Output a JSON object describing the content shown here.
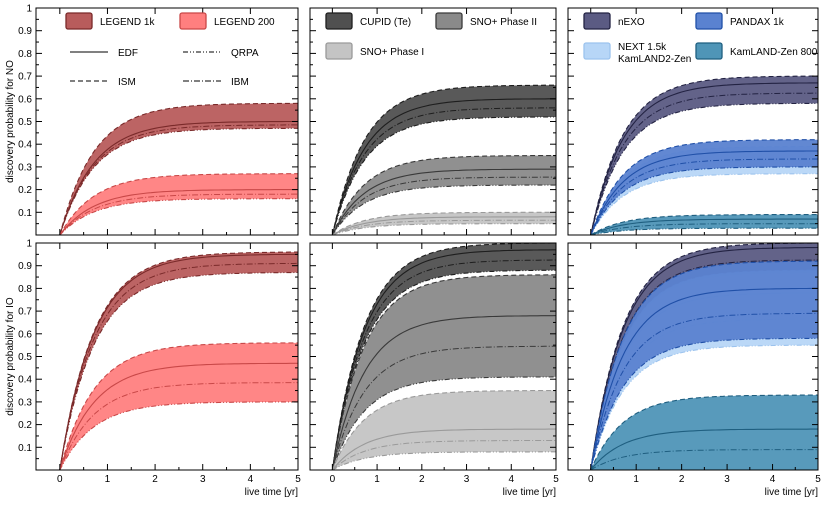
{
  "chart_data": {
    "type": "area",
    "title": "",
    "xlabel": "live time [yr]",
    "xlim": [
      -0.5,
      5
    ],
    "ylim": [
      0,
      1
    ],
    "x_ticks": [
      "0",
      "1",
      "2",
      "3",
      "4",
      "5"
    ],
    "y_ticks": [
      "0.1",
      "0.2",
      "0.3",
      "0.4",
      "0.5",
      "0.6",
      "0.7",
      "0.8",
      "0.9",
      "1"
    ],
    "row_ylabels": [
      "discovery probability for NO",
      "discovery probability for IO"
    ],
    "model_legend": [
      "EDF",
      "QRPA",
      "ISM",
      "IBM"
    ],
    "panels": [
      {
        "id": "legend-NO",
        "row": 0,
        "col": 0,
        "legend": [
          {
            "label": "LEGEND 1k",
            "color": "#b85c5c"
          },
          {
            "label": "LEGEND 200",
            "color": "#ff7f7f"
          }
        ],
        "bands": [
          {
            "name": "LEGEND 1k",
            "fill": "#b85c5c",
            "edge": "#7a2a2a",
            "lower_at_5yr": 0.47,
            "upper_at_5yr": 0.58,
            "edf_at_5yr": 0.5
          },
          {
            "name": "LEGEND 200",
            "fill": "#ff7f7f",
            "edge": "#c94848",
            "lower_at_5yr": 0.16,
            "upper_at_5yr": 0.27,
            "edf_at_5yr": 0.2
          }
        ]
      },
      {
        "id": "tellurium-NO",
        "row": 0,
        "col": 1,
        "legend": [
          {
            "label": "CUPID (Te)",
            "color": "#505050"
          },
          {
            "label": "SNO+ Phase II",
            "color": "#8a8a8a"
          },
          {
            "label": "SNO+ Phase I",
            "color": "#c4c4c4"
          }
        ],
        "bands": [
          {
            "name": "CUPID (Te)",
            "fill": "#505050",
            "edge": "#1e1e1e",
            "lower_at_5yr": 0.52,
            "upper_at_5yr": 0.66,
            "edf_at_5yr": 0.6
          },
          {
            "name": "SNO+ Phase II",
            "fill": "#8a8a8a",
            "edge": "#3a3a3a",
            "lower_at_5yr": 0.22,
            "upper_at_5yr": 0.35,
            "edf_at_5yr": 0.29
          },
          {
            "name": "SNO+ Phase I",
            "fill": "#c4c4c4",
            "edge": "#9a9a9a",
            "lower_at_5yr": 0.05,
            "upper_at_5yr": 0.1,
            "edf_at_5yr": 0.08
          }
        ]
      },
      {
        "id": "xenon-NO",
        "row": 0,
        "col": 2,
        "legend": [
          {
            "label": "nEXO",
            "color": "#5b5b83"
          },
          {
            "label": "PANDAX 1k",
            "color": "#5a82d0"
          },
          {
            "label": "NEXT 1.5k",
            "color": "#b7d6f7"
          },
          {
            "label": "KamLAND2-Zen",
            "color": "#b7d6f7"
          },
          {
            "label": "KamLAND-Zen 800",
            "color": "#4f95b7"
          }
        ],
        "bands": [
          {
            "name": "nEXO",
            "fill": "#5b5b83",
            "edge": "#232343",
            "lower_at_5yr": 0.58,
            "upper_at_5yr": 0.7,
            "edf_at_5yr": 0.67
          },
          {
            "name": "NEXT 1.5k / KamLAND2-Zen",
            "fill": "#b7d6f7",
            "edge": "#9cc3ee",
            "lower_at_5yr": 0.27,
            "upper_at_5yr": 0.39,
            "edf_at_5yr": 0.33
          },
          {
            "name": "PANDAX 1k",
            "fill": "#5a82d0",
            "edge": "#2050a8",
            "lower_at_5yr": 0.3,
            "upper_at_5yr": 0.42,
            "edf_at_5yr": 0.37
          },
          {
            "name": "KamLAND-Zen 800",
            "fill": "#4f95b7",
            "edge": "#1f5f80",
            "lower_at_5yr": 0.03,
            "upper_at_5yr": 0.09,
            "edf_at_5yr": 0.07
          }
        ]
      },
      {
        "id": "legend-IO",
        "row": 1,
        "col": 0,
        "bands": [
          {
            "name": "LEGEND 1k",
            "fill": "#b85c5c",
            "edge": "#7a2a2a",
            "lower_at_5yr": 0.87,
            "upper_at_5yr": 0.96,
            "edf_at_5yr": 0.95
          },
          {
            "name": "LEGEND 200",
            "fill": "#ff7f7f",
            "edge": "#c94848",
            "lower_at_5yr": 0.3,
            "upper_at_5yr": 0.56,
            "edf_at_5yr": 0.47
          }
        ]
      },
      {
        "id": "tellurium-IO",
        "row": 1,
        "col": 1,
        "bands": [
          {
            "name": "CUPID (Te)",
            "fill": "#505050",
            "edge": "#1e1e1e",
            "lower_at_5yr": 0.88,
            "upper_at_5yr": 1.0,
            "edf_at_5yr": 0.97
          },
          {
            "name": "SNO+ Phase II",
            "fill": "#8a8a8a",
            "edge": "#3a3a3a",
            "lower_at_5yr": 0.41,
            "upper_at_5yr": 0.86,
            "edf_at_5yr": 0.68
          },
          {
            "name": "SNO+ Phase I",
            "fill": "#c4c4c4",
            "edge": "#9a9a9a",
            "lower_at_5yr": 0.08,
            "upper_at_5yr": 0.35,
            "edf_at_5yr": 0.18
          }
        ]
      },
      {
        "id": "xenon-IO",
        "row": 1,
        "col": 2,
        "bands": [
          {
            "name": "nEXO",
            "fill": "#5b5b83",
            "edge": "#232343",
            "lower_at_5yr": 0.87,
            "upper_at_5yr": 1.0,
            "edf_at_5yr": 0.98
          },
          {
            "name": "NEXT 1.5k / KamLAND2-Zen",
            "fill": "#b7d6f7",
            "edge": "#9cc3ee",
            "lower_at_5yr": 0.55,
            "upper_at_5yr": 0.88,
            "edf_at_5yr": 0.78
          },
          {
            "name": "PANDAX 1k",
            "fill": "#5a82d0",
            "edge": "#2050a8",
            "lower_at_5yr": 0.58,
            "upper_at_5yr": 0.92,
            "edf_at_5yr": 0.8
          },
          {
            "name": "KamLAND-Zen 800",
            "fill": "#4f95b7",
            "edge": "#1f5f80",
            "lower_at_5yr": 0.0,
            "upper_at_5yr": 0.33,
            "edf_at_5yr": 0.18
          }
        ]
      }
    ]
  }
}
